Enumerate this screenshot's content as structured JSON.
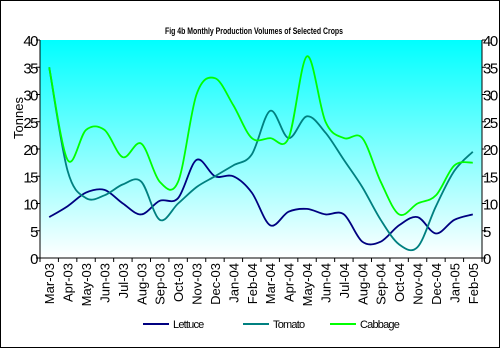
{
  "chart_data": {
    "type": "line",
    "title": "Fig 4b Monthly Production Volumes of Selected Crops",
    "ylabel": "Tonnes",
    "ylim": [
      0,
      40
    ],
    "y_ticks": [
      "0",
      "5",
      "10",
      "15",
      "20",
      "25",
      "30",
      "35",
      "40"
    ],
    "grid": false,
    "legend_position": "bottom",
    "plot_fill_top": "#00FFFF",
    "plot_fill_bottom": "#FFFFFF",
    "categories": [
      "Mar-03",
      "Apr-03",
      "May-03",
      "Jun-03",
      "Jul-03",
      "Aug-03",
      "Sep-03",
      "Oct-03",
      "Nov-03",
      "Dec-03",
      "Jan-04",
      "Feb-04",
      "Mar-04",
      "Apr-04",
      "May-04",
      "Jun-04",
      "Jul-04",
      "Aug-04",
      "Sep-04",
      "Oct-04",
      "Nov-04",
      "Dec-04",
      "Jan-05",
      "Feb-05"
    ],
    "series": [
      {
        "name": "Lettuce",
        "color": "#000080",
        "values": [
          7.5,
          9.5,
          12,
          12.5,
          10,
          8,
          10.5,
          11,
          18,
          15,
          15,
          12,
          6,
          8.5,
          9,
          8,
          8,
          3,
          3,
          6,
          7.5,
          4.5,
          7,
          8
        ]
      },
      {
        "name": "Tomato",
        "color": "#008080",
        "values": [
          35,
          16,
          11,
          11.5,
          13.5,
          14,
          7,
          10,
          13,
          15,
          17,
          19,
          27,
          22,
          26,
          23,
          18,
          13,
          7,
          2.5,
          2,
          9.5,
          16,
          19.5
        ]
      },
      {
        "name": "Cabbage",
        "color": "#00FF00",
        "values": [
          35,
          18,
          23.5,
          23.5,
          18.5,
          21,
          14,
          14,
          30,
          33,
          28,
          22,
          22,
          22,
          37,
          25,
          22,
          22,
          14,
          8,
          10,
          11.5,
          17,
          17.5
        ]
      }
    ]
  }
}
